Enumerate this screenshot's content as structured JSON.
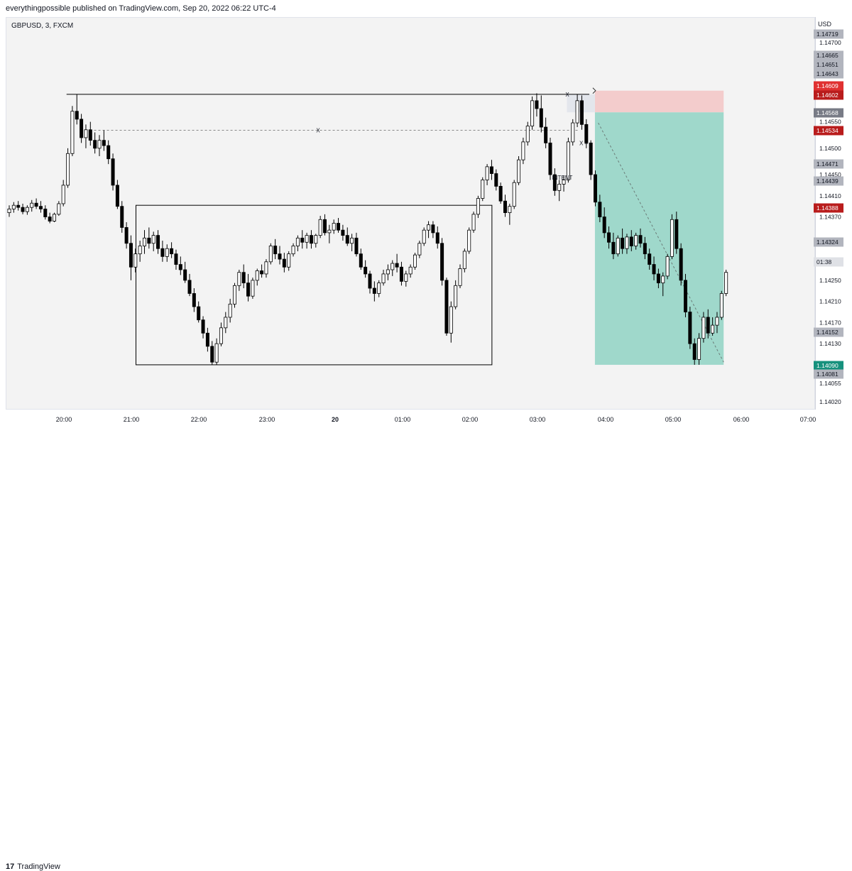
{
  "header": {
    "published": "everythingpossible published on TradingView.com, Sep 20, 2022 06:22 UTC-4"
  },
  "symbol": "GBPUSD, 3, FXCM",
  "currency": "USD",
  "footer": {
    "logo_mark": "17",
    "logo_text": "TradingView"
  },
  "colors": {
    "up": "#ffffff",
    "down": "#000000",
    "outline": "#000000",
    "target_zone": "#9fd8cb",
    "stop_zone": "#f3cccc",
    "entry_zone": "#e3e6ec",
    "red_label": "#e03131",
    "teal_label": "#16917d",
    "grey_label": "#a3a6af",
    "dark_grey_label": "#787b86"
  },
  "chart_data": {
    "type": "candlestick",
    "title": "",
    "xlabel": "",
    "ylabel": "",
    "ylim": [
      1.14,
      1.1474
    ],
    "x_ticks": [
      "20:00",
      "21:00",
      "22:00",
      "23:00",
      "20",
      "01:00",
      "02:00",
      "03:00",
      "04:00",
      "05:00",
      "06:00",
      "07:00"
    ],
    "y_ticks": [
      "1.14700",
      "1.14550",
      "1.14500",
      "1.14450",
      "1.14410",
      "1.14370",
      "1.14250",
      "1.14210",
      "1.14170",
      "1.14130",
      "1.14055",
      "1.14020"
    ],
    "price_labels": [
      {
        "text": "1.14719",
        "style": "grey"
      },
      {
        "text": "1.14665",
        "style": "grey"
      },
      {
        "text": "1.14651",
        "style": "grey"
      },
      {
        "text": "1.14643",
        "style": "grey"
      },
      {
        "text": "1.14609",
        "style": "red"
      },
      {
        "text": "1.14602",
        "style": "darkred"
      },
      {
        "text": "1.14568",
        "style": "dark"
      },
      {
        "text": "1.14534",
        "style": "darkred"
      },
      {
        "text": "1.14471",
        "style": "grey"
      },
      {
        "text": "1.14439",
        "style": "grey"
      },
      {
        "text": "1.14388",
        "style": "darkred"
      },
      {
        "text": "1.14324",
        "style": "grey"
      },
      {
        "text": "01:38",
        "style": "light"
      },
      {
        "text": "1.14152",
        "style": "grey"
      },
      {
        "text": "1.14090",
        "style": "teal"
      },
      {
        "text": "1.14081",
        "style": "grey"
      }
    ],
    "annotations": [
      {
        "text": "X",
        "kind": "range-mid"
      },
      {
        "text": "X",
        "kind": "high-mark"
      },
      {
        "text": "X –",
        "kind": "level-mark"
      },
      {
        "text": "INTENT",
        "kind": "label"
      }
    ],
    "range_box": {
      "t_start": "21:05",
      "t_end": "02:23",
      "high": 1.14392,
      "low": 1.1409
    },
    "high_line": {
      "t_start": "20:03",
      "t_end": "03:50",
      "value": 1.14602
    },
    "dashed_level": {
      "t_start": "20:20",
      "t_end": "03:40",
      "value": 1.14534
    },
    "short_position": {
      "t_start": "03:55",
      "t_end": "05:50",
      "entry": 1.14568,
      "stop": 1.14609,
      "target": 1.1409
    },
    "candles": [
      [
        1.14378,
        1.14392,
        1.1437,
        1.14385
      ],
      [
        1.14385,
        1.14398,
        1.14378,
        1.14392
      ],
      [
        1.14392,
        1.144,
        1.14382,
        1.14388
      ],
      [
        1.14388,
        1.14395,
        1.14375,
        1.1438
      ],
      [
        1.1438,
        1.14392,
        1.14374,
        1.14388
      ],
      [
        1.14388,
        1.14402,
        1.1438,
        1.14396
      ],
      [
        1.14396,
        1.14405,
        1.14385,
        1.1439
      ],
      [
        1.1439,
        1.144,
        1.14378,
        1.14385
      ],
      [
        1.14385,
        1.14392,
        1.14365,
        1.1437
      ],
      [
        1.1437,
        1.14378,
        1.14358,
        1.14362
      ],
      [
        1.14362,
        1.14378,
        1.1436,
        1.14375
      ],
      [
        1.14375,
        1.144,
        1.14372,
        1.14395
      ],
      [
        1.14395,
        1.1444,
        1.1439,
        1.1443
      ],
      [
        1.1443,
        1.145,
        1.14425,
        1.1449
      ],
      [
        1.1449,
        1.1458,
        1.14485,
        1.1457
      ],
      [
        1.1457,
        1.14602,
        1.14545,
        1.14555
      ],
      [
        1.14555,
        1.14565,
        1.1451,
        1.1452
      ],
      [
        1.1452,
        1.14545,
        1.145,
        1.14535
      ],
      [
        1.14535,
        1.1455,
        1.14505,
        1.14515
      ],
      [
        1.14515,
        1.1453,
        1.1449,
        1.145
      ],
      [
        1.145,
        1.14525,
        1.14485,
        1.14515
      ],
      [
        1.14515,
        1.14534,
        1.14495,
        1.14505
      ],
      [
        1.14505,
        1.14515,
        1.1447,
        1.1448
      ],
      [
        1.1448,
        1.1449,
        1.1442,
        1.1443
      ],
      [
        1.1443,
        1.1444,
        1.14385,
        1.1439
      ],
      [
        1.1439,
        1.144,
        1.1434,
        1.1435
      ],
      [
        1.1435,
        1.1436,
        1.1431,
        1.1432
      ],
      [
        1.1432,
        1.14335,
        1.1425,
        1.14275
      ],
      [
        1.14275,
        1.1431,
        1.14265,
        1.143
      ],
      [
        1.143,
        1.14325,
        1.14285,
        1.14315
      ],
      [
        1.14315,
        1.14345,
        1.143,
        1.1433
      ],
      [
        1.1433,
        1.1435,
        1.1431,
        1.1432
      ],
      [
        1.1432,
        1.14342,
        1.14305,
        1.14335
      ],
      [
        1.14335,
        1.14345,
        1.143,
        1.1431
      ],
      [
        1.1431,
        1.14325,
        1.14285,
        1.14295
      ],
      [
        1.14295,
        1.14318,
        1.14285,
        1.1431
      ],
      [
        1.1431,
        1.14322,
        1.14292,
        1.143
      ],
      [
        1.143,
        1.14308,
        1.1427,
        1.1428
      ],
      [
        1.1428,
        1.14295,
        1.1426,
        1.1427
      ],
      [
        1.1427,
        1.14285,
        1.14245,
        1.1425
      ],
      [
        1.1425,
        1.14262,
        1.1422,
        1.14225
      ],
      [
        1.14225,
        1.14235,
        1.1419,
        1.142
      ],
      [
        1.142,
        1.1421,
        1.1417,
        1.14175
      ],
      [
        1.14175,
        1.14182,
        1.1414,
        1.1415
      ],
      [
        1.1415,
        1.1416,
        1.14115,
        1.14125
      ],
      [
        1.14125,
        1.14135,
        1.1409,
        1.14095
      ],
      [
        1.14095,
        1.1414,
        1.1409,
        1.1413
      ],
      [
        1.1413,
        1.1417,
        1.14125,
        1.1416
      ],
      [
        1.1416,
        1.1419,
        1.1415,
        1.1418
      ],
      [
        1.1418,
        1.14215,
        1.1417,
        1.14205
      ],
      [
        1.14205,
        1.14245,
        1.14198,
        1.1424
      ],
      [
        1.1424,
        1.1427,
        1.1423,
        1.14265
      ],
      [
        1.14265,
        1.1428,
        1.14235,
        1.14245
      ],
      [
        1.14245,
        1.14262,
        1.1421,
        1.1422
      ],
      [
        1.1422,
        1.14255,
        1.14215,
        1.1425
      ],
      [
        1.1425,
        1.14272,
        1.1424,
        1.14268
      ],
      [
        1.14268,
        1.1428,
        1.14255,
        1.14262
      ],
      [
        1.14262,
        1.1429,
        1.14255,
        1.14285
      ],
      [
        1.14285,
        1.1432,
        1.1428,
        1.14315
      ],
      [
        1.14315,
        1.14328,
        1.1429,
        1.143
      ],
      [
        1.143,
        1.14315,
        1.1428,
        1.1429
      ],
      [
        1.1429,
        1.14302,
        1.14265,
        1.14275
      ],
      [
        1.14275,
        1.14305,
        1.14268,
        1.143
      ],
      [
        1.143,
        1.1432,
        1.14295,
        1.14315
      ],
      [
        1.14315,
        1.14335,
        1.14305,
        1.1433
      ],
      [
        1.1433,
        1.14345,
        1.1431,
        1.14322
      ],
      [
        1.14322,
        1.1434,
        1.1431,
        1.14335
      ],
      [
        1.14335,
        1.14345,
        1.1431,
        1.1432
      ],
      [
        1.1432,
        1.14338,
        1.14312,
        1.14335
      ],
      [
        1.14335,
        1.14372,
        1.1433,
        1.14365
      ],
      [
        1.14365,
        1.14375,
        1.14335,
        1.1434
      ],
      [
        1.1434,
        1.14355,
        1.1432,
        1.14345
      ],
      [
        1.14345,
        1.14365,
        1.14338,
        1.14358
      ],
      [
        1.14358,
        1.14368,
        1.1434,
        1.14345
      ],
      [
        1.14345,
        1.14355,
        1.14325,
        1.14335
      ],
      [
        1.14335,
        1.1435,
        1.14315,
        1.1432
      ],
      [
        1.1432,
        1.14338,
        1.14305,
        1.1433
      ],
      [
        1.1433,
        1.1434,
        1.14295,
        1.143
      ],
      [
        1.143,
        1.1431,
        1.1427,
        1.14275
      ],
      [
        1.14275,
        1.14288,
        1.14255,
        1.14262
      ],
      [
        1.14262,
        1.14268,
        1.14225,
        1.14235
      ],
      [
        1.14235,
        1.14248,
        1.1421,
        1.14225
      ],
      [
        1.14225,
        1.1425,
        1.14218,
        1.14245
      ],
      [
        1.14245,
        1.1427,
        1.1424,
        1.14262
      ],
      [
        1.14262,
        1.1428,
        1.1425,
        1.1427
      ],
      [
        1.1427,
        1.14288,
        1.14258,
        1.14282
      ],
      [
        1.14282,
        1.143,
        1.14265,
        1.14275
      ],
      [
        1.14275,
        1.14285,
        1.1424,
        1.14248
      ],
      [
        1.14248,
        1.14268,
        1.14238,
        1.14262
      ],
      [
        1.14262,
        1.1428,
        1.14255,
        1.14275
      ],
      [
        1.14275,
        1.14302,
        1.1427,
        1.14298
      ],
      [
        1.14298,
        1.14325,
        1.14292,
        1.1432
      ],
      [
        1.1432,
        1.1435,
        1.14315,
        1.14345
      ],
      [
        1.14345,
        1.14362,
        1.1433,
        1.14355
      ],
      [
        1.14355,
        1.14362,
        1.1433,
        1.1434
      ],
      [
        1.1434,
        1.14352,
        1.1431,
        1.1432
      ],
      [
        1.1432,
        1.1433,
        1.1424,
        1.1425
      ],
      [
        1.1425,
        1.14255,
        1.14145,
        1.1415
      ],
      [
        1.1415,
        1.1421,
        1.14132,
        1.142
      ],
      [
        1.142,
        1.1425,
        1.14195,
        1.1424
      ],
      [
        1.1424,
        1.1428,
        1.14235,
        1.14272
      ],
      [
        1.14272,
        1.1431,
        1.14265,
        1.14305
      ],
      [
        1.14305,
        1.1435,
        1.143,
        1.14345
      ],
      [
        1.14345,
        1.1438,
        1.1434,
        1.14375
      ],
      [
        1.14375,
        1.1441,
        1.14368,
        1.14405
      ],
      [
        1.14405,
        1.14445,
        1.144,
        1.1444
      ],
      [
        1.1444,
        1.1447,
        1.1443,
        1.14465
      ],
      [
        1.14465,
        1.14478,
        1.1444,
        1.14452
      ],
      [
        1.14452,
        1.1446,
        1.1442,
        1.14428
      ],
      [
        1.14428,
        1.14435,
        1.14395,
        1.144
      ],
      [
        1.144,
        1.14412,
        1.1437,
        1.14378
      ],
      [
        1.14378,
        1.14395,
        1.14355,
        1.1439
      ],
      [
        1.1439,
        1.1444,
        1.14385,
        1.14435
      ],
      [
        1.14435,
        1.14485,
        1.1443,
        1.14478
      ],
      [
        1.14478,
        1.1452,
        1.1447,
        1.14512
      ],
      [
        1.14512,
        1.1455,
        1.14505,
        1.14542
      ],
      [
        1.14542,
        1.14598,
        1.14535,
        1.1459
      ],
      [
        1.1459,
        1.14604,
        1.1456,
        1.14575
      ],
      [
        1.14575,
        1.146,
        1.1453,
        1.1454
      ],
      [
        1.1454,
        1.14558,
        1.145,
        1.1451
      ],
      [
        1.1451,
        1.1452,
        1.1444,
        1.1445
      ],
      [
        1.1445,
        1.14462,
        1.1441,
        1.1442
      ],
      [
        1.1442,
        1.1444,
        1.144,
        1.14432
      ],
      [
        1.14432,
        1.14448,
        1.14418,
        1.1444
      ],
      [
        1.1444,
        1.1452,
        1.14435,
        1.14512
      ],
      [
        1.14512,
        1.14555,
        1.14505,
        1.14548
      ],
      [
        1.14548,
        1.14602,
        1.1454,
        1.1459
      ],
      [
        1.1459,
        1.146,
        1.14535,
        1.14545
      ],
      [
        1.14545,
        1.14555,
        1.145,
        1.1451
      ],
      [
        1.1451,
        1.14515,
        1.1444,
        1.1445
      ],
      [
        1.1445,
        1.14458,
        1.1439,
        1.14398
      ],
      [
        1.14398,
        1.14412,
        1.1436,
        1.1437
      ],
      [
        1.1437,
        1.14388,
        1.1433,
        1.1434
      ],
      [
        1.1434,
        1.14352,
        1.1431,
        1.14322
      ],
      [
        1.14322,
        1.1434,
        1.1429,
        1.143
      ],
      [
        1.143,
        1.14335,
        1.14295,
        1.1433
      ],
      [
        1.1433,
        1.14348,
        1.143,
        1.1431
      ],
      [
        1.1431,
        1.14338,
        1.143,
        1.14332
      ],
      [
        1.14332,
        1.14345,
        1.14305,
        1.14315
      ],
      [
        1.14315,
        1.1434,
        1.14308,
        1.14335
      ],
      [
        1.14335,
        1.14348,
        1.14312,
        1.1432
      ],
      [
        1.1432,
        1.14332,
        1.1429,
        1.143
      ],
      [
        1.143,
        1.1431,
        1.1427,
        1.1428
      ],
      [
        1.1428,
        1.14295,
        1.1425,
        1.14262
      ],
      [
        1.14262,
        1.14272,
        1.14235,
        1.14245
      ],
      [
        1.14245,
        1.14265,
        1.1422,
        1.14258
      ],
      [
        1.14258,
        1.143,
        1.14252,
        1.14295
      ],
      [
        1.14295,
        1.14375,
        1.1429,
        1.14365
      ],
      [
        1.14365,
        1.1438,
        1.143,
        1.1431
      ],
      [
        1.1431,
        1.1432,
        1.1424,
        1.1425
      ],
      [
        1.1425,
        1.14262,
        1.1418,
        1.1419
      ],
      [
        1.1419,
        1.142,
        1.1412,
        1.1413
      ],
      [
        1.1413,
        1.1414,
        1.1409,
        1.141
      ],
      [
        1.141,
        1.1415,
        1.1409,
        1.1414
      ],
      [
        1.1414,
        1.1419,
        1.14132,
        1.1418
      ],
      [
        1.1418,
        1.14195,
        1.1414,
        1.1415
      ],
      [
        1.1415,
        1.1418,
        1.14145,
        1.14165
      ],
      [
        1.14165,
        1.1419,
        1.1415,
        1.1418
      ],
      [
        1.1418,
        1.1423,
        1.14175,
        1.14225
      ],
      [
        1.14225,
        1.1427,
        1.1422,
        1.14265
      ]
    ]
  }
}
